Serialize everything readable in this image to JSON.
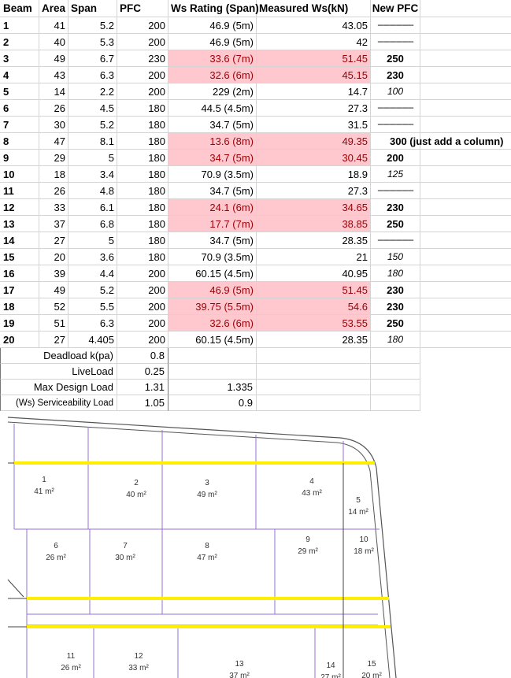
{
  "header": [
    "Beam",
    "Area",
    "Span",
    "PFC",
    "Ws Rating (Span)",
    "Measured Ws(kN)",
    "New PFC"
  ],
  "rows": [
    {
      "beam": "1",
      "area": "41",
      "span": "5.2",
      "pfc": "200",
      "ws": "46.9 (5m)",
      "measured": "43.05",
      "newpfc": "-----------------",
      "flag": false,
      "style": "dash"
    },
    {
      "beam": "2",
      "area": "40",
      "span": "5.3",
      "pfc": "200",
      "ws": "46.9 (5m)",
      "measured": "42",
      "newpfc": "-----------------",
      "flag": false,
      "style": "dash"
    },
    {
      "beam": "3",
      "area": "49",
      "span": "6.7",
      "pfc": "230",
      "ws": "33.6  (7m)",
      "measured": "51.45",
      "newpfc": "250",
      "flag": true,
      "style": "bold"
    },
    {
      "beam": "4",
      "area": "43",
      "span": "6.3",
      "pfc": "200",
      "ws": "32.6 (6m)",
      "measured": "45.15",
      "newpfc": "230",
      "flag": true,
      "style": "bold"
    },
    {
      "beam": "5",
      "area": "14",
      "span": "2.2",
      "pfc": "200",
      "ws": "229 (2m)",
      "measured": "14.7",
      "newpfc": "100",
      "flag": false,
      "style": "ital"
    },
    {
      "beam": "6",
      "area": "26",
      "span": "4.5",
      "pfc": "180",
      "ws": "44.5 (4.5m)",
      "measured": "27.3",
      "newpfc": "-----------------",
      "flag": false,
      "style": "dash"
    },
    {
      "beam": "7",
      "area": "30",
      "span": "5.2",
      "pfc": "180",
      "ws": "34.7 (5m)",
      "measured": "31.5",
      "newpfc": "-----------------",
      "flag": false,
      "style": "dash"
    },
    {
      "beam": "8",
      "area": "47",
      "span": "8.1",
      "pfc": "180",
      "ws": "13.6 (8m)",
      "measured": "49.35",
      "newpfc": "300 (just add a column)",
      "flag": true,
      "style": "overflow"
    },
    {
      "beam": "9",
      "area": "29",
      "span": "5",
      "pfc": "180",
      "ws": "34.7 (5m)",
      "measured": "30.45",
      "newpfc": "200",
      "flag": true,
      "style": "bold"
    },
    {
      "beam": "10",
      "area": "18",
      "span": "3.4",
      "pfc": "180",
      "ws": "70.9 (3.5m)",
      "measured": "18.9",
      "newpfc": "125",
      "flag": false,
      "style": "ital"
    },
    {
      "beam": "11",
      "area": "26",
      "span": "4.8",
      "pfc": "180",
      "ws": "34.7 (5m)",
      "measured": "27.3",
      "newpfc": "-----------------",
      "flag": false,
      "style": "dash"
    },
    {
      "beam": "12",
      "area": "33",
      "span": "6.1",
      "pfc": "180",
      "ws": "24.1 (6m)",
      "measured": "34.65",
      "newpfc": "230",
      "flag": true,
      "style": "bold"
    },
    {
      "beam": "13",
      "area": "37",
      "span": "6.8",
      "pfc": "180",
      "ws": "17.7 (7m)",
      "measured": "38.85",
      "newpfc": "250",
      "flag": true,
      "style": "bold"
    },
    {
      "beam": "14",
      "area": "27",
      "span": "5",
      "pfc": "180",
      "ws": "34.7 (5m)",
      "measured": "28.35",
      "newpfc": "-----------------",
      "flag": false,
      "style": "dash"
    },
    {
      "beam": "15",
      "area": "20",
      "span": "3.6",
      "pfc": "180",
      "ws": "70.9 (3.5m)",
      "measured": "21",
      "newpfc": "150",
      "flag": false,
      "style": "ital"
    },
    {
      "beam": "16",
      "area": "39",
      "span": "4.4",
      "pfc": "200",
      "ws": "60.15 (4.5m)",
      "measured": "40.95",
      "newpfc": "180",
      "flag": false,
      "style": "ital"
    },
    {
      "beam": "17",
      "area": "49",
      "span": "5.2",
      "pfc": "200",
      "ws": "46.9 (5m)",
      "measured": "51.45",
      "newpfc": "230",
      "flag": true,
      "style": "bold"
    },
    {
      "beam": "18",
      "area": "52",
      "span": "5.5",
      "pfc": "200",
      "ws": "39.75 (5.5m)",
      "measured": "54.6",
      "newpfc": "230",
      "flag": true,
      "style": "bold"
    },
    {
      "beam": "19",
      "area": "51",
      "span": "6.3",
      "pfc": "200",
      "ws": "32.6 (6m)",
      "measured": "53.55",
      "newpfc": "250",
      "flag": true,
      "style": "bold"
    },
    {
      "beam": "20",
      "area": "27",
      "span": "4.405",
      "pfc": "200",
      "ws": "60.15 (4.5m)",
      "measured": "28.35",
      "newpfc": "180",
      "flag": false,
      "style": "ital"
    }
  ],
  "loads": [
    {
      "label": "Deadload k(pa)",
      "value": "0.8",
      "extra": ""
    },
    {
      "label": "LiveLoad",
      "value": "0.25",
      "extra": ""
    },
    {
      "label": "Max Design Load",
      "value": "1.31",
      "extra": "1.335"
    },
    {
      "label": "(Ws) Serviceability Load",
      "value": "1.05",
      "extra": "0.9"
    }
  ],
  "plan": {
    "rooms": [
      {
        "num": "1",
        "area": "41 m²"
      },
      {
        "num": "2",
        "area": "40 m²"
      },
      {
        "num": "3",
        "area": "49 m²"
      },
      {
        "num": "4",
        "area": "43 m²"
      },
      {
        "num": "5",
        "area": "14 m²"
      },
      {
        "num": "6",
        "area": "26 m²"
      },
      {
        "num": "7",
        "area": "30 m²"
      },
      {
        "num": "8",
        "area": "47 m²"
      },
      {
        "num": "9",
        "area": "29 m²"
      },
      {
        "num": "10",
        "area": "18 m²"
      },
      {
        "num": "11",
        "area": "26 m²"
      },
      {
        "num": "12",
        "area": "33 m²"
      },
      {
        "num": "13",
        "area": "37 m²"
      },
      {
        "num": "14",
        "area": "27 m²"
      },
      {
        "num": "15",
        "area": "20 m²"
      }
    ],
    "colors": {
      "beam": "#ffee00",
      "wall": "#9a6fd6",
      "outline": "#555555"
    }
  },
  "colors": {
    "flag_fill": "#ffc7ce",
    "flag_text": "#9c0006",
    "grid": "#d4d4d4"
  }
}
